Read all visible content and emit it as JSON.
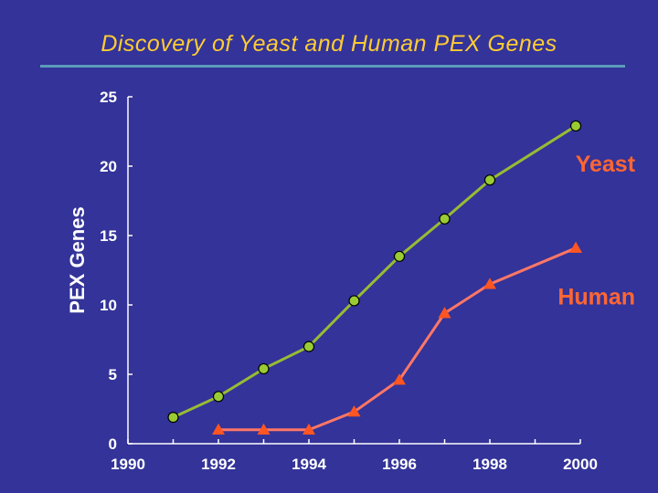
{
  "chart_data": {
    "type": "line",
    "title": "Discovery  of  Yeast  and  Human  PEX  Genes",
    "xlabel": "",
    "ylabel": "PEX Genes",
    "xlim": [
      1990,
      2000
    ],
    "ylim": [
      0,
      25
    ],
    "x_ticks": [
      "1990",
      "1992",
      "1994",
      "1996",
      "1998",
      "2000"
    ],
    "y_ticks": [
      "0",
      "5",
      "10",
      "15",
      "20",
      "25"
    ],
    "grid": false,
    "series": [
      {
        "name": "Yeast",
        "marker": "circle",
        "line_color": "#99bb33",
        "marker_color": "#99cc33",
        "x": [
          1991,
          1992,
          1993,
          1994,
          1995,
          1996,
          1997,
          1998,
          1999.9
        ],
        "y": [
          1.9,
          3.4,
          5.4,
          7,
          10.3,
          13.5,
          16.2,
          19,
          22.9
        ]
      },
      {
        "name": "Human",
        "marker": "triangle",
        "line_color": "#ff7766",
        "marker_color": "#ff5522",
        "x": [
          1992,
          1993,
          1994,
          1995,
          1996,
          1997,
          1998,
          1999.9
        ],
        "y": [
          1,
          1,
          1,
          2.3,
          4.6,
          9.4,
          11.5,
          14.1
        ]
      }
    ]
  }
}
